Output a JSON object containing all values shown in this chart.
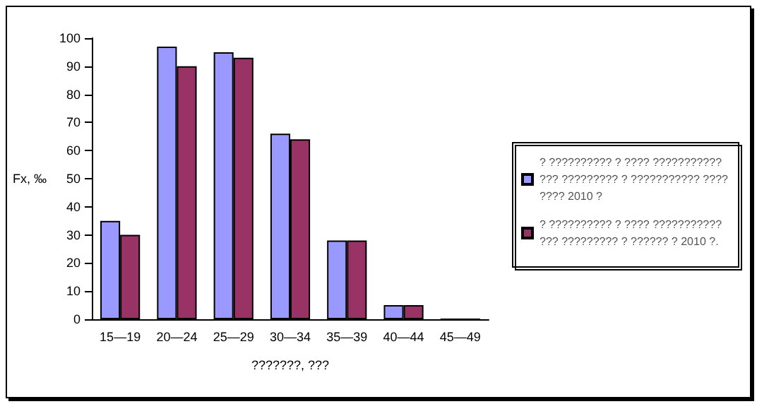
{
  "chart_data": {
    "type": "bar",
    "xlabel": "???????, ???",
    "ylabel": "Fx, ‰",
    "categories": [
      "15—19",
      "20—24",
      "25—29",
      "30—34",
      "35—39",
      "40—44",
      "45—49"
    ],
    "series": [
      {
        "name": "? ?????????? ? ???? ??????????? ??? ????????? ? ??????????? ???????? 2010 ?",
        "color": "#9999ff",
        "values": [
          35,
          97,
          95,
          66,
          28,
          5,
          0
        ]
      },
      {
        "name": "? ?????????? ? ???? ??????????? ??? ????????? ? ?????? ? 2010 ?.",
        "color": "#993366",
        "values": [
          30,
          90,
          93,
          64,
          28,
          5,
          0
        ]
      }
    ],
    "ylim": [
      0,
      100
    ],
    "yticks": [
      0,
      10,
      20,
      30,
      40,
      50,
      60,
      70,
      80,
      90,
      100
    ],
    "grid": false,
    "legend": "right"
  }
}
